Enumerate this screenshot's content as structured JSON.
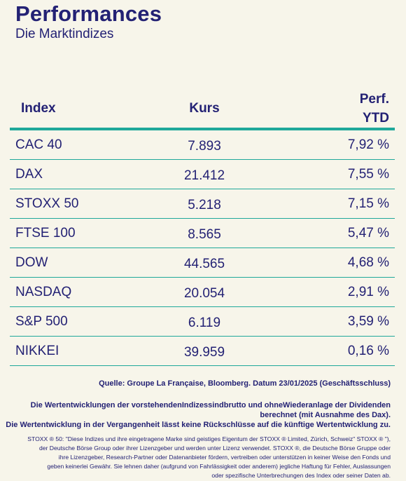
{
  "header": {
    "title": "Performances",
    "subtitle": "Die Marktindizes"
  },
  "table": {
    "columns": {
      "index": "Index",
      "kurs": "Kurs",
      "perf_line1": "Perf.",
      "perf_line2": "YTD"
    },
    "rows": [
      {
        "name": "CAC 40",
        "kurs": "7.893",
        "perf": "7,92 %"
      },
      {
        "name": "DAX",
        "kurs": "21.412",
        "perf": "7,55 %"
      },
      {
        "name": "STOXX 50",
        "kurs": "5.218",
        "perf": "7,15 %"
      },
      {
        "name": "FTSE 100",
        "kurs": "8.565",
        "perf": "5,47 %"
      },
      {
        "name": "DOW",
        "kurs": "44.565",
        "perf": "4,68 %"
      },
      {
        "name": "NASDAQ",
        "kurs": "20.054",
        "perf": "2,91 %"
      },
      {
        "name": "S&P 500",
        "kurs": "6.119",
        "perf": "3,59 %"
      },
      {
        "name": "NIKKEI",
        "kurs": "39.959",
        "perf": "0,16 %"
      }
    ]
  },
  "footer": {
    "source": "Quelle: Groupe La Française, Bloomberg. Datum 23/01/2025 (Geschäftsschluss)",
    "disclaimer_line1": "Die Wertentwicklungen der vorstehendenIndizessindbrutto und ohneWiederanlage der Dividenden",
    "disclaimer_line2": "berechnet (mit Ausnahme des Dax).",
    "disclaimer_line3": "Die Wertentwicklung in der Vergangenheit lässt keine Rückschlüsse auf die künftige Wertentwicklung zu.",
    "legal_line1": "STOXX ® 50: \"Diese Indizes und ihre eingetragene Marke sind geistiges Eigentum der STOXX ® Limited, Zürich, Schweiz\" STOXX ® \"),",
    "legal_line2": "der Deutsche Börse Group oder ihrer Lizenzgeber und werden unter Lizenz verwendet. STOXX ®, die Deutsche Börse Gruppe oder",
    "legal_line3": "ihre Lizenzgeber, Research-Partner oder Datenanbieter fördern, vertreiben oder unterstützen in keiner Weise den Fonds und",
    "legal_line4": "geben keinerlei Gewähr. Sie lehnen daher (aufgrund von Fahrlässigkeit oder anderem) jegliche Haftung für Fehler, Auslassungen",
    "legal_line5": "oder spezifische Unterbrechungen des Index oder seiner Daten ab."
  },
  "colors": {
    "background": "#f7f5ea",
    "text": "#232174",
    "accent": "#1fa89a"
  }
}
